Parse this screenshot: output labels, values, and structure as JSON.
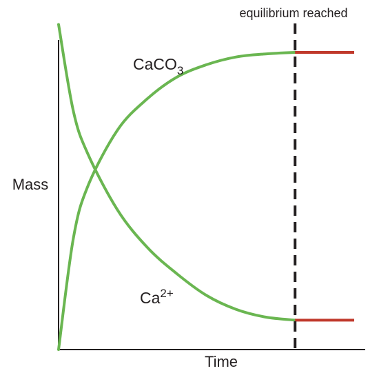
{
  "chart_data": {
    "type": "line",
    "xlabel": "Time",
    "ylabel": "Mass",
    "xlim": [
      0,
      10
    ],
    "ylim": [
      0,
      10
    ],
    "grid": false,
    "annotation": "equilibrium reached",
    "equilibrium_x": 8,
    "series": [
      {
        "name": "CaCO",
        "name_subscript": "3",
        "color": "#6ab651",
        "plateau_color": "#c0392b",
        "x": [
          0,
          0.5,
          1,
          2,
          3,
          4,
          5,
          6,
          7,
          8,
          10
        ],
        "y": [
          0,
          3.6,
          5.3,
          7.1,
          8.1,
          8.8,
          9.2,
          9.45,
          9.55,
          9.6,
          9.6
        ]
      },
      {
        "name": "Ca",
        "name_superscript": "2+",
        "color": "#6ab651",
        "plateau_color": "#c0392b",
        "x": [
          0,
          0.5,
          1,
          2,
          3,
          4,
          5,
          6,
          7,
          8,
          10
        ],
        "y": [
          10.5,
          7.7,
          6.3,
          4.5,
          3.3,
          2.45,
          1.75,
          1.3,
          1.05,
          0.95,
          0.95
        ]
      }
    ]
  }
}
